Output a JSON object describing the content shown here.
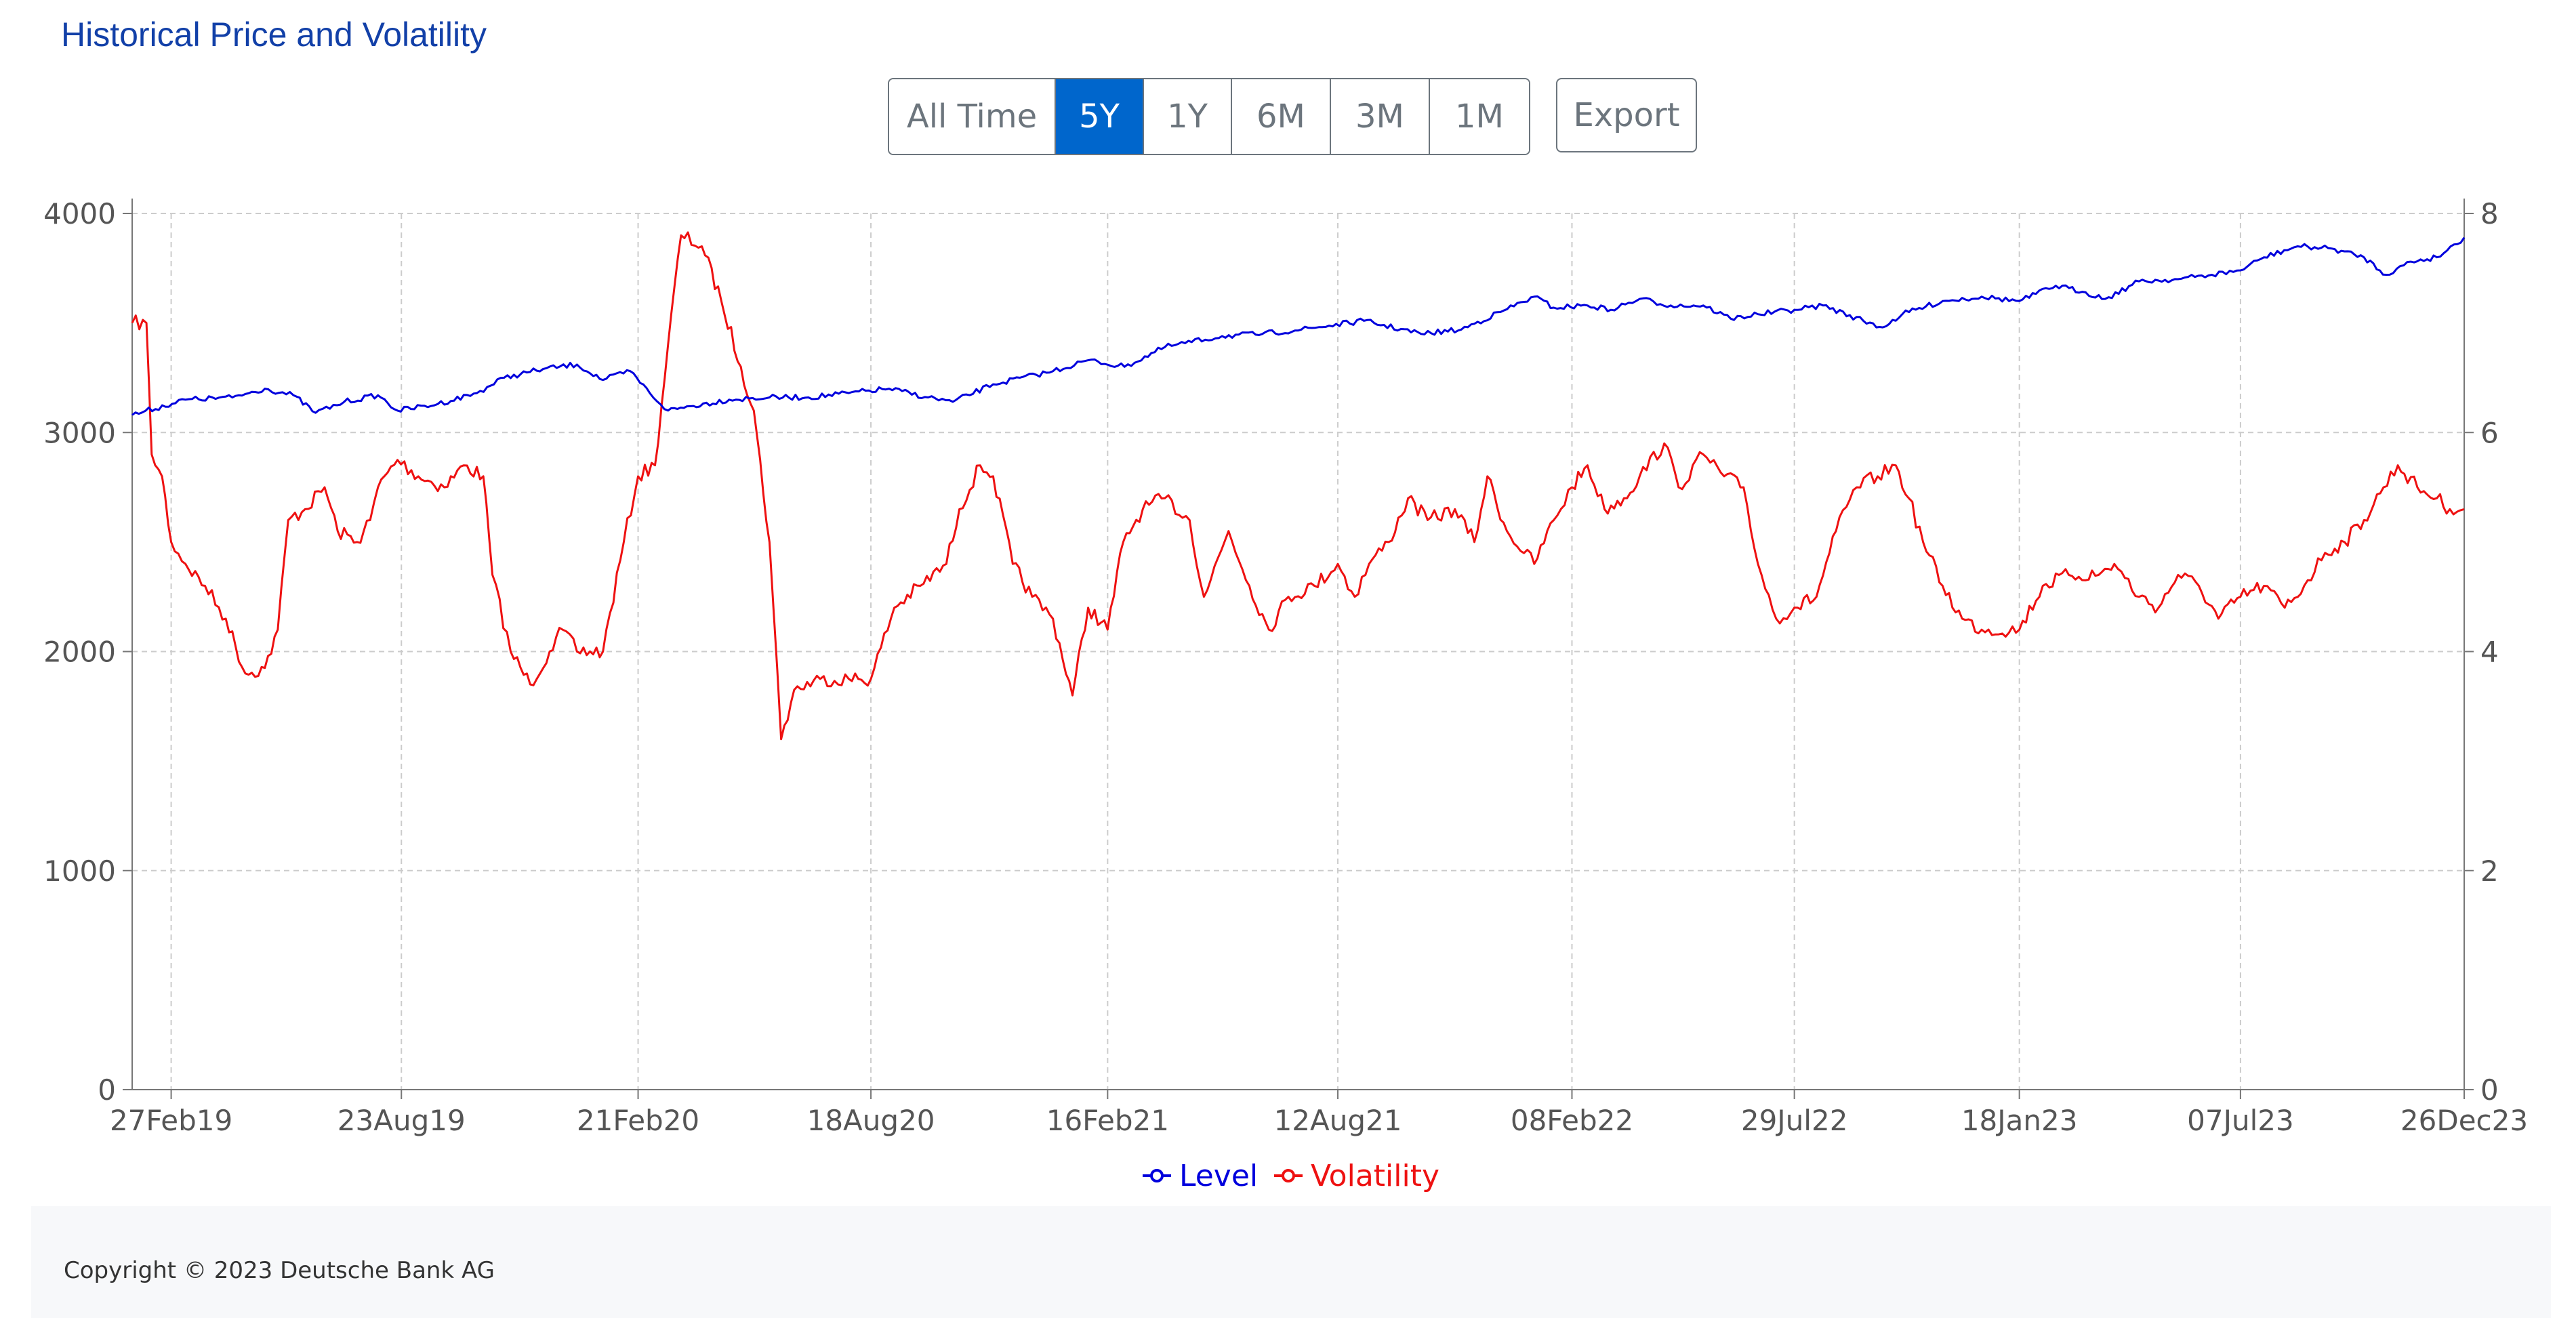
{
  "header": {
    "title": "Historical Price and Volatility"
  },
  "toolbar": {
    "ranges": [
      "All Time",
      "5Y",
      "1Y",
      "6M",
      "3M",
      "1M"
    ],
    "active_range": "5Y",
    "export_label": "Export"
  },
  "footer": {
    "copyright": "Copyright © 2023 Deutsche Bank AG"
  },
  "colors": {
    "level": "#0000dd",
    "volatility": "#ee1111",
    "accent": "#0066cc"
  },
  "chart_data": {
    "type": "line",
    "title": "Historical Price and Volatility",
    "x_range": [
      "2019-01-28",
      "2023-12-26"
    ],
    "x_ticks": [
      "27Feb19",
      "23Aug19",
      "21Feb20",
      "18Aug20",
      "16Feb21",
      "12Aug21",
      "08Feb22",
      "29Jul22",
      "18Jan23",
      "07Jul23",
      "26Dec23"
    ],
    "x_tick_dates": [
      "2019-02-27",
      "2019-08-23",
      "2020-02-21",
      "2020-08-18",
      "2021-02-16",
      "2021-08-12",
      "2022-02-08",
      "2022-07-29",
      "2023-01-18",
      "2023-07-07",
      "2023-12-26"
    ],
    "y_left": {
      "range": [
        0,
        4000
      ],
      "ticks": [
        "0",
        "1000",
        "2000",
        "3000",
        "4000"
      ]
    },
    "y_right": {
      "range": [
        0,
        8
      ],
      "ticks": [
        "0",
        "2",
        "4",
        "6",
        "8"
      ]
    },
    "grid": true,
    "legend_position": "bottom-center",
    "series": [
      {
        "name": "Level",
        "axis": "left",
        "points": [
          [
            "2019-01-28",
            3080
          ],
          [
            "2019-03-10",
            3150
          ],
          [
            "2019-04-15",
            3160
          ],
          [
            "2019-05-10",
            3200
          ],
          [
            "2019-06-01",
            3170
          ],
          [
            "2019-06-18",
            3090
          ],
          [
            "2019-07-10",
            3140
          ],
          [
            "2019-08-05",
            3170
          ],
          [
            "2019-08-20",
            3100
          ],
          [
            "2019-09-20",
            3130
          ],
          [
            "2019-10-20",
            3180
          ],
          [
            "2019-11-10",
            3250
          ],
          [
            "2019-12-10",
            3290
          ],
          [
            "2020-01-05",
            3310
          ],
          [
            "2020-01-25",
            3240
          ],
          [
            "2020-02-15",
            3280
          ],
          [
            "2020-03-01",
            3180
          ],
          [
            "2020-03-15",
            3100
          ],
          [
            "2020-04-01",
            3120
          ],
          [
            "2020-05-01",
            3150
          ],
          [
            "2020-06-01",
            3160
          ],
          [
            "2020-07-01",
            3160
          ],
          [
            "2020-08-01",
            3180
          ],
          [
            "2020-09-01",
            3200
          ],
          [
            "2020-10-01",
            3160
          ],
          [
            "2020-10-20",
            3140
          ],
          [
            "2020-11-20",
            3220
          ],
          [
            "2021-01-05",
            3280
          ],
          [
            "2021-02-01",
            3330
          ],
          [
            "2021-03-01",
            3300
          ],
          [
            "2021-04-01",
            3390
          ],
          [
            "2021-05-15",
            3440
          ],
          [
            "2021-06-15",
            3450
          ],
          [
            "2021-07-15",
            3470
          ],
          [
            "2021-09-01",
            3510
          ],
          [
            "2021-10-15",
            3450
          ],
          [
            "2021-11-15",
            3470
          ],
          [
            "2021-12-15",
            3550
          ],
          [
            "2022-01-10",
            3620
          ],
          [
            "2022-01-25",
            3570
          ],
          [
            "2022-02-20",
            3580
          ],
          [
            "2022-03-10",
            3560
          ],
          [
            "2022-04-01",
            3610
          ],
          [
            "2022-04-25",
            3580
          ],
          [
            "2022-05-20",
            3580
          ],
          [
            "2022-06-10",
            3520
          ],
          [
            "2022-07-01",
            3540
          ],
          [
            "2022-07-29",
            3560
          ],
          [
            "2022-08-20",
            3580
          ],
          [
            "2022-09-20",
            3510
          ],
          [
            "2022-10-05",
            3480
          ],
          [
            "2022-10-20",
            3540
          ],
          [
            "2022-11-20",
            3600
          ],
          [
            "2022-12-20",
            3620
          ],
          [
            "2023-01-18",
            3600
          ],
          [
            "2023-02-15",
            3670
          ],
          [
            "2023-03-10",
            3640
          ],
          [
            "2023-03-25",
            3610
          ],
          [
            "2023-04-20",
            3690
          ],
          [
            "2023-05-20",
            3700
          ],
          [
            "2023-06-15",
            3720
          ],
          [
            "2023-07-07",
            3740
          ],
          [
            "2023-07-25",
            3800
          ],
          [
            "2023-08-20",
            3850
          ],
          [
            "2023-09-15",
            3840
          ],
          [
            "2023-10-10",
            3800
          ],
          [
            "2023-10-27",
            3720
          ],
          [
            "2023-11-15",
            3780
          ],
          [
            "2023-12-05",
            3800
          ],
          [
            "2023-12-26",
            3890
          ]
        ]
      },
      {
        "name": "Volatility",
        "axis": "right",
        "points": [
          [
            "2019-01-28",
            7.0
          ],
          [
            "2019-02-08",
            7.0
          ],
          [
            "2019-02-12",
            5.8
          ],
          [
            "2019-02-20",
            5.6
          ],
          [
            "2019-02-27",
            5.0
          ],
          [
            "2019-03-10",
            4.8
          ],
          [
            "2019-03-25",
            4.6
          ],
          [
            "2019-04-10",
            4.3
          ],
          [
            "2019-04-25",
            3.8
          ],
          [
            "2019-05-10",
            3.85
          ],
          [
            "2019-05-20",
            4.2
          ],
          [
            "2019-05-28",
            5.2
          ],
          [
            "2019-06-10",
            5.3
          ],
          [
            "2019-06-25",
            5.5
          ],
          [
            "2019-07-05",
            5.1
          ],
          [
            "2019-07-20",
            5.0
          ],
          [
            "2019-07-30",
            5.2
          ],
          [
            "2019-08-05",
            5.5
          ],
          [
            "2019-08-20",
            5.75
          ],
          [
            "2019-09-05",
            5.6
          ],
          [
            "2019-09-25",
            5.5
          ],
          [
            "2019-10-10",
            5.7
          ],
          [
            "2019-10-25",
            5.6
          ],
          [
            "2019-11-01",
            4.7
          ],
          [
            "2019-11-15",
            4.0
          ],
          [
            "2019-11-30",
            3.7
          ],
          [
            "2019-12-15",
            4.0
          ],
          [
            "2019-12-25",
            4.2
          ],
          [
            "2020-01-05",
            4.0
          ],
          [
            "2020-01-25",
            4.0
          ],
          [
            "2020-02-10",
            5.0
          ],
          [
            "2020-02-21",
            5.6
          ],
          [
            "2020-03-05",
            5.7
          ],
          [
            "2020-03-15",
            6.8
          ],
          [
            "2020-03-25",
            7.8
          ],
          [
            "2020-04-10",
            7.7
          ],
          [
            "2020-04-25",
            7.2
          ],
          [
            "2020-05-10",
            6.6
          ],
          [
            "2020-05-20",
            6.2
          ],
          [
            "2020-06-01",
            5.0
          ],
          [
            "2020-06-10",
            3.2
          ],
          [
            "2020-06-20",
            3.65
          ],
          [
            "2020-07-10",
            3.75
          ],
          [
            "2020-08-01",
            3.75
          ],
          [
            "2020-08-18",
            3.75
          ],
          [
            "2020-09-05",
            4.4
          ],
          [
            "2020-09-25",
            4.6
          ],
          [
            "2020-10-15",
            4.8
          ],
          [
            "2020-10-25",
            5.3
          ],
          [
            "2020-11-10",
            5.7
          ],
          [
            "2020-11-20",
            5.6
          ],
          [
            "2020-12-05",
            4.8
          ],
          [
            "2020-12-20",
            4.5
          ],
          [
            "2021-01-05",
            4.3
          ],
          [
            "2021-01-20",
            3.6
          ],
          [
            "2021-02-01",
            4.4
          ],
          [
            "2021-02-16",
            4.2
          ],
          [
            "2021-02-28",
            5.0
          ],
          [
            "2021-03-15",
            5.3
          ],
          [
            "2021-04-01",
            5.4
          ],
          [
            "2021-04-20",
            5.2
          ],
          [
            "2021-05-01",
            4.5
          ],
          [
            "2021-05-20",
            5.1
          ],
          [
            "2021-06-05",
            4.6
          ],
          [
            "2021-06-20",
            4.2
          ],
          [
            "2021-07-05",
            4.5
          ],
          [
            "2021-07-25",
            4.6
          ],
          [
            "2021-08-12",
            4.8
          ],
          [
            "2021-08-25",
            4.5
          ],
          [
            "2021-09-05",
            4.8
          ],
          [
            "2021-09-20",
            5.0
          ],
          [
            "2021-10-05",
            5.4
          ],
          [
            "2021-10-20",
            5.2
          ],
          [
            "2021-11-10",
            5.3
          ],
          [
            "2021-11-25",
            5.0
          ],
          [
            "2021-12-05",
            5.6
          ],
          [
            "2021-12-20",
            5.1
          ],
          [
            "2022-01-10",
            4.8
          ],
          [
            "2022-01-25",
            5.2
          ],
          [
            "2022-02-08",
            5.5
          ],
          [
            "2022-02-20",
            5.7
          ],
          [
            "2022-03-05",
            5.3
          ],
          [
            "2022-03-20",
            5.4
          ],
          [
            "2022-04-01",
            5.6
          ],
          [
            "2022-04-20",
            5.9
          ],
          [
            "2022-05-01",
            5.5
          ],
          [
            "2022-05-20",
            5.8
          ],
          [
            "2022-06-05",
            5.6
          ],
          [
            "2022-06-20",
            5.5
          ],
          [
            "2022-07-01",
            4.8
          ],
          [
            "2022-07-15",
            4.3
          ],
          [
            "2022-07-29",
            4.4
          ],
          [
            "2022-08-15",
            4.5
          ],
          [
            "2022-08-30",
            5.1
          ],
          [
            "2022-09-15",
            5.5
          ],
          [
            "2022-10-01",
            5.6
          ],
          [
            "2022-10-15",
            5.7
          ],
          [
            "2022-10-25",
            5.4
          ],
          [
            "2022-11-05",
            5.0
          ],
          [
            "2022-11-20",
            4.6
          ],
          [
            "2022-12-05",
            4.3
          ],
          [
            "2022-12-20",
            4.2
          ],
          [
            "2023-01-18",
            4.2
          ],
          [
            "2023-02-05",
            4.6
          ],
          [
            "2023-02-25",
            4.7
          ],
          [
            "2023-03-20",
            4.7
          ],
          [
            "2023-04-01",
            4.8
          ],
          [
            "2023-04-20",
            4.5
          ],
          [
            "2023-05-05",
            4.4
          ],
          [
            "2023-05-20",
            4.7
          ],
          [
            "2023-06-05",
            4.6
          ],
          [
            "2023-06-20",
            4.3
          ],
          [
            "2023-07-07",
            4.5
          ],
          [
            "2023-07-25",
            4.6
          ],
          [
            "2023-08-10",
            4.4
          ],
          [
            "2023-08-25",
            4.6
          ],
          [
            "2023-09-10",
            4.9
          ],
          [
            "2023-09-25",
            5.0
          ],
          [
            "2023-10-10",
            5.2
          ],
          [
            "2023-10-25",
            5.5
          ],
          [
            "2023-11-05",
            5.7
          ],
          [
            "2023-11-20",
            5.5
          ],
          [
            "2023-12-05",
            5.4
          ],
          [
            "2023-12-15",
            5.3
          ],
          [
            "2023-12-26",
            5.3
          ]
        ]
      }
    ]
  }
}
